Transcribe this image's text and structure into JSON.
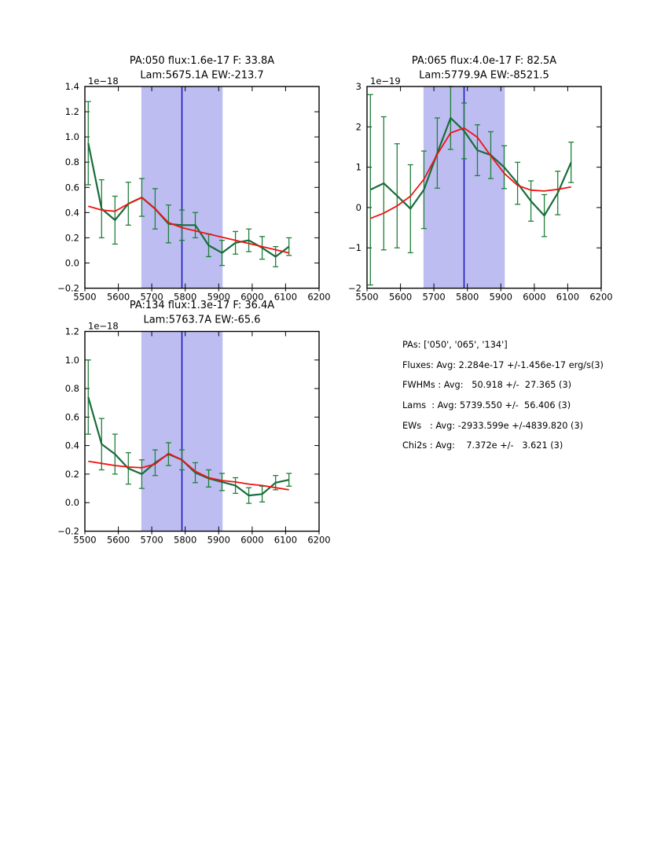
{
  "figure": {
    "background": "#ffffff"
  },
  "colors": {
    "spectrum": "#186c3c",
    "error_bar": "#1f8038",
    "fit": "#f11212",
    "band": "#bdbdf2",
    "vline": "#1414bE",
    "axis": "#000000"
  },
  "panel": {
    "lines": [
      "PAs: ['050', '065', '134']",
      "Fluxes: Avg: 2.284e-17 +/-1.456e-17 erg/s(3)",
      "FWHMs : Avg:   50.918 +/-  27.365 (3)",
      "Lams  : Avg: 5739.550 +/-  56.406 (3)",
      "EWs   : Avg: -2933.599e +/-4839.820 (3)",
      "Chi2s : Avg:    7.372e +/-   3.621 (3)"
    ]
  },
  "chart_data": [
    {
      "name": "pa-050",
      "type": "line",
      "title_line1": "PA:050 flux:1.6e-17 F: 33.8A",
      "title_line2": "Lam:5675.1A EW:-213.7",
      "offset_label": "1e−18",
      "xlim": [
        5500,
        6200
      ],
      "ylim": [
        -0.2,
        1.4
      ],
      "xticks": [
        5500,
        5600,
        5700,
        5800,
        5900,
        6000,
        6100,
        6200
      ],
      "yticks": [
        1.4,
        1.2,
        1.0,
        0.8,
        0.6,
        0.4,
        0.2,
        0.0,
        -0.2
      ],
      "ytick_labels": [
        "1.4",
        "1.2",
        "1.0",
        "0.8",
        "0.6",
        "0.4",
        "0.2",
        "0.0",
        "−0.2"
      ],
      "band": [
        5669,
        5912
      ],
      "vline": 5790,
      "grid": false,
      "legend": null,
      "x": [
        5510,
        5550,
        5590,
        5630,
        5670,
        5710,
        5750,
        5790,
        5830,
        5870,
        5910,
        5950,
        5990,
        6030,
        6070,
        6110
      ],
      "series": [
        {
          "name": "spectrum",
          "values": [
            0.95,
            0.43,
            0.34,
            0.47,
            0.52,
            0.43,
            0.31,
            0.3,
            0.3,
            0.14,
            0.08,
            0.16,
            0.18,
            0.12,
            0.05,
            0.13
          ],
          "errors": [
            0.33,
            0.23,
            0.19,
            0.17,
            0.15,
            0.16,
            0.15,
            0.12,
            0.1,
            0.09,
            0.1,
            0.09,
            0.09,
            0.09,
            0.08,
            0.07
          ]
        },
        {
          "name": "fit",
          "values": [
            0.45,
            0.42,
            0.41,
            0.47,
            0.52,
            0.43,
            0.32,
            0.28,
            0.255,
            0.23,
            0.205,
            0.18,
            0.155,
            0.13,
            0.105,
            0.08
          ]
        }
      ]
    },
    {
      "name": "pa-065",
      "type": "line",
      "title_line1": "PA:065 flux:4.0e-17 F: 82.5A",
      "title_line2": "Lam:5779.9A EW:-8521.5",
      "offset_label": "1e−19",
      "xlim": [
        5500,
        6200
      ],
      "ylim": [
        -2,
        3
      ],
      "xticks": [
        5500,
        5600,
        5700,
        5800,
        5900,
        6000,
        6100,
        6200
      ],
      "yticks": [
        3,
        2,
        1,
        0,
        -1,
        -2
      ],
      "ytick_labels": [
        "3",
        "2",
        "1",
        "0",
        "−1",
        "−2"
      ],
      "band": [
        5669,
        5912
      ],
      "vline": 5790,
      "grid": false,
      "legend": null,
      "x": [
        5510,
        5550,
        5590,
        5630,
        5670,
        5710,
        5750,
        5790,
        5830,
        5870,
        5910,
        5950,
        5990,
        6030,
        6070,
        6110
      ],
      "series": [
        {
          "name": "spectrum",
          "values": [
            0.44,
            0.6,
            0.29,
            -0.03,
            0.44,
            1.35,
            2.22,
            1.9,
            1.42,
            1.3,
            1.0,
            0.6,
            0.16,
            -0.2,
            0.36,
            1.12
          ],
          "errors": [
            2.36,
            1.65,
            1.29,
            1.09,
            0.96,
            0.87,
            0.78,
            0.69,
            0.63,
            0.58,
            0.53,
            0.52,
            0.5,
            0.52,
            0.54,
            0.5
          ]
        },
        {
          "name": "fit",
          "values": [
            -0.27,
            -0.14,
            0.04,
            0.28,
            0.7,
            1.32,
            1.85,
            1.97,
            1.74,
            1.28,
            0.85,
            0.55,
            0.43,
            0.41,
            0.45,
            0.51
          ]
        }
      ]
    },
    {
      "name": "pa-134",
      "type": "line",
      "title_line1": "PA:134 flux:1.3e-17 F: 36.4A",
      "title_line2": "Lam:5763.7A EW:-65.6",
      "offset_label": "1e−18",
      "xlim": [
        5500,
        6200
      ],
      "ylim": [
        -0.2,
        1.2
      ],
      "xticks": [
        5500,
        5600,
        5700,
        5800,
        5900,
        6000,
        6100,
        6200
      ],
      "yticks": [
        1.2,
        1.0,
        0.8,
        0.6,
        0.4,
        0.2,
        0.0,
        -0.2
      ],
      "ytick_labels": [
        "1.2",
        "1.0",
        "0.8",
        "0.6",
        "0.4",
        "0.2",
        "0.0",
        "−0.2"
      ],
      "band": [
        5669,
        5912
      ],
      "vline": 5790,
      "grid": false,
      "legend": null,
      "x": [
        5510,
        5550,
        5590,
        5630,
        5670,
        5710,
        5750,
        5790,
        5830,
        5870,
        5910,
        5950,
        5990,
        6030,
        6070,
        6110
      ],
      "series": [
        {
          "name": "spectrum",
          "values": [
            0.74,
            0.41,
            0.34,
            0.24,
            0.2,
            0.28,
            0.34,
            0.3,
            0.21,
            0.17,
            0.145,
            0.12,
            0.05,
            0.06,
            0.14,
            0.16
          ],
          "errors": [
            0.26,
            0.18,
            0.14,
            0.11,
            0.1,
            0.09,
            0.08,
            0.07,
            0.07,
            0.06,
            0.06,
            0.055,
            0.055,
            0.055,
            0.05,
            0.045
          ]
        },
        {
          "name": "fit",
          "values": [
            0.29,
            0.275,
            0.26,
            0.25,
            0.245,
            0.27,
            0.345,
            0.3,
            0.22,
            0.175,
            0.155,
            0.145,
            0.13,
            0.12,
            0.105,
            0.09
          ]
        }
      ]
    }
  ]
}
